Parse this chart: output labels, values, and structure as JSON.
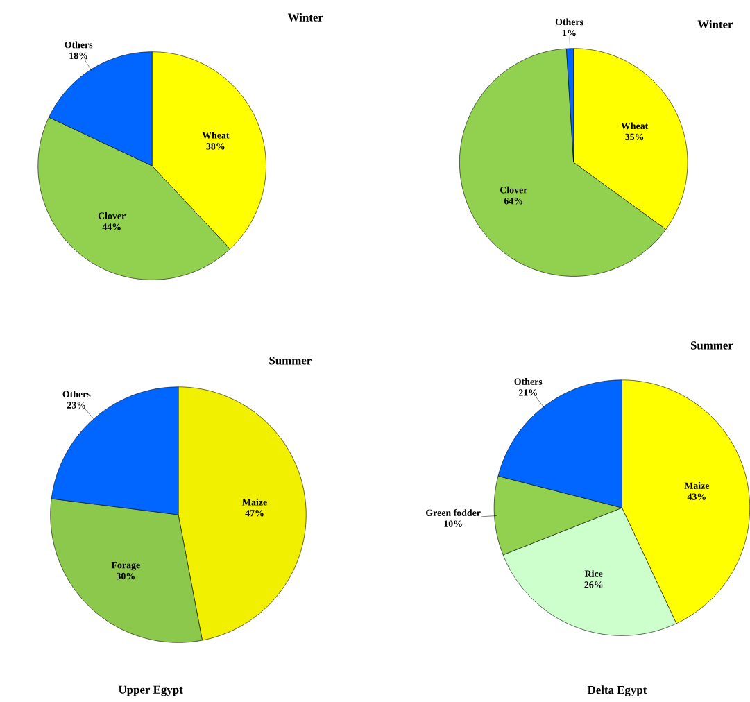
{
  "chart_data": [
    {
      "type": "pie",
      "title": "Winter",
      "categories": [
        "Wheat",
        "Clover",
        "Others"
      ],
      "values": [
        38,
        44,
        18
      ],
      "colors": [
        "#ffff00",
        "#92d050",
        "#0066ff"
      ],
      "value_labels": [
        "38%",
        "44%",
        "18%"
      ]
    },
    {
      "type": "pie",
      "title": "Winter",
      "categories": [
        "Wheat",
        "Clover",
        "Others"
      ],
      "values": [
        35,
        64,
        1
      ],
      "colors": [
        "#ffff00",
        "#92d050",
        "#0066ff"
      ],
      "value_labels": [
        "35%",
        "64%",
        "1%"
      ]
    },
    {
      "type": "pie",
      "title": "Summer",
      "categories": [
        "Maize",
        "Forage",
        "Others"
      ],
      "values": [
        47,
        30,
        23
      ],
      "colors": [
        "#f0f000",
        "#8cc84b",
        "#0066ff"
      ],
      "value_labels": [
        "47%",
        "30%",
        "23%"
      ],
      "annotations": [
        "Upper Egypt"
      ]
    },
    {
      "type": "pie",
      "title": "Summer",
      "categories": [
        "Maize",
        "Rice",
        "Green fodder",
        "Others"
      ],
      "values": [
        43,
        26,
        10,
        21
      ],
      "colors": [
        "#ffff00",
        "#ccffcc",
        "#92d050",
        "#0066ff"
      ],
      "value_labels": [
        "43%",
        "26%",
        "10%",
        "21%"
      ],
      "annotations": [
        "Delta Egypt"
      ]
    }
  ]
}
